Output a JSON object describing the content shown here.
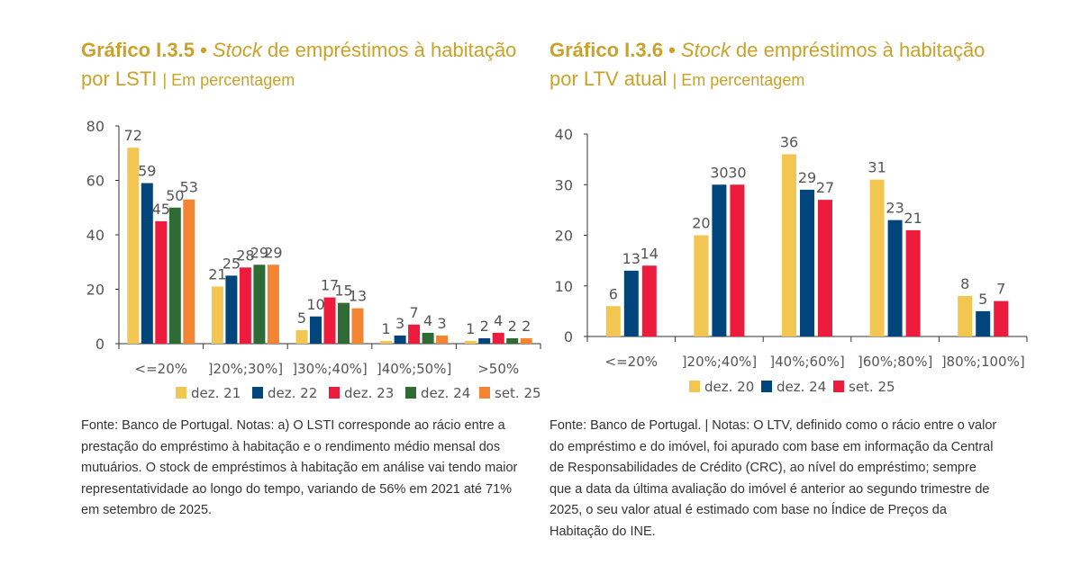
{
  "chart_data": [
    {
      "type": "bar",
      "title_prefix": "Gráfico I.3.5",
      "title_stock": "Stock",
      "title_rest": "de empréstimos à habitação por LSTI",
      "subtitle": "| Em percentagem",
      "categories": [
        "<=20%",
        "]20%;30%]",
        "]30%;40%]",
        "]40%;50%]",
        ">50%"
      ],
      "ylim": [
        0,
        80
      ],
      "yticks": [
        0,
        20,
        40,
        60,
        80
      ],
      "grid": false,
      "legend_position": "bottom",
      "series": [
        {
          "name": "dez. 21",
          "color": "#F2C651",
          "values": [
            72,
            21,
            5,
            1,
            1
          ]
        },
        {
          "name": "dez. 22",
          "color": "#00457C",
          "values": [
            59,
            25,
            10,
            3,
            2
          ]
        },
        {
          "name": "dez. 23",
          "color": "#EE1C3C",
          "values": [
            45,
            28,
            17,
            7,
            4
          ]
        },
        {
          "name": "dez. 24",
          "color": "#2F6B34",
          "values": [
            50,
            29,
            15,
            4,
            2
          ]
        },
        {
          "name": "set. 25",
          "color": "#F38432",
          "values": [
            53,
            29,
            13,
            3,
            2
          ]
        }
      ],
      "notes": "Fonte: Banco de Portugal. Notas: a) O LSTI corresponde ao rácio entre a prestação do empréstimo à habitação e o rendimento médio mensal dos mutuários. O stock de empréstimos à habitação em análise vai tendo maior representatividade ao longo do tempo, variando de 56% em 2021 até 71% em setembro de 2025."
    },
    {
      "type": "bar",
      "title_prefix": "Gráfico I.3.6",
      "title_stock": "Stock",
      "title_rest": "de empréstimos à habitação por LTV atual",
      "subtitle": "| Em percentagem",
      "categories": [
        "<=20%",
        "]20%;40%]",
        "]40%;60%]",
        "]60%;80%]",
        "]80%;100%]"
      ],
      "ylim": [
        0,
        40
      ],
      "yticks": [
        0,
        10,
        20,
        30,
        40
      ],
      "grid": false,
      "legend_position": "bottom",
      "series": [
        {
          "name": "dez. 20",
          "color": "#F2C651",
          "values": [
            6,
            20,
            36,
            31,
            8
          ]
        },
        {
          "name": "dez. 24",
          "color": "#00457C",
          "values": [
            13,
            30,
            29,
            23,
            5
          ]
        },
        {
          "name": "set. 25",
          "color": "#EE1C3C",
          "values": [
            14,
            30,
            27,
            21,
            7
          ]
        }
      ],
      "notes": "Fonte: Banco de Portugal.  |  Notas: O LTV, definido como o rácio entre o valor do empréstimo e do imóvel, foi apurado com base em informação da Central de Responsabilidades de Crédito (CRC), ao nível do empréstimo; sempre que a data da última avaliação do imóvel é anterior ao segundo trimestre de 2025, o seu valor atual é estimado com base no Índice de Preços da Habitação do INE."
    }
  ]
}
